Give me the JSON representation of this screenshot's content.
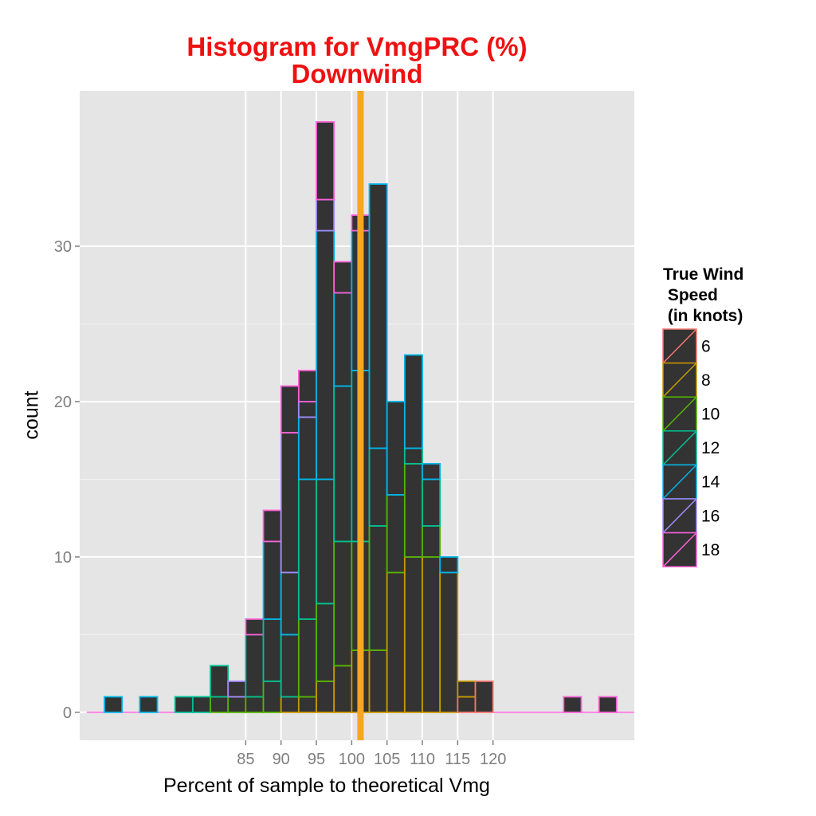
{
  "chart_data": {
    "type": "bar",
    "stacked": true,
    "title_line1": "Histogram for VmgPRC (%)",
    "title_line2": "Downwind",
    "xlabel": "Percent of sample to theoretical Vmg",
    "ylabel": "count",
    "xlim": [
      61.5,
      140.0
    ],
    "ylim": [
      -1.8,
      40.0
    ],
    "bin_width": 2.5,
    "x_ticks": [
      85,
      90,
      95,
      100,
      105,
      110,
      115,
      120
    ],
    "x_tick_labels": [
      "85",
      "90",
      "95",
      "100",
      "105",
      "110",
      "115",
      "120"
    ],
    "y_ticks": [
      0,
      10,
      20,
      30
    ],
    "y_tick_labels": [
      "0",
      "10",
      "20",
      "30"
    ],
    "reference_line": {
      "x": 101.25,
      "color": "#f5a623"
    },
    "grid": true,
    "legend": {
      "title_lines": [
        "True Wind",
        " Speed",
        " (in knots)"
      ],
      "position": "right",
      "entries": [
        {
          "label": "6",
          "color": "#f8766d"
        },
        {
          "label": "8",
          "color": "#c49a00"
        },
        {
          "label": "10",
          "color": "#53b400"
        },
        {
          "label": "12",
          "color": "#00c094"
        },
        {
          "label": "14",
          "color": "#00b6eb"
        },
        {
          "label": "16",
          "color": "#a58aff"
        },
        {
          "label": "18",
          "color": "#fb61d7"
        }
      ]
    },
    "series_names": [
      "6",
      "8",
      "10",
      "12",
      "14",
      "16",
      "18"
    ],
    "bins": [
      {
        "x": 66.25,
        "counts": [
          0,
          0,
          0,
          0,
          1,
          0,
          0
        ]
      },
      {
        "x": 68.75,
        "counts": [
          0,
          0,
          0,
          0,
          0,
          0,
          0
        ]
      },
      {
        "x": 71.25,
        "counts": [
          0,
          0,
          0,
          0,
          1,
          0,
          0
        ]
      },
      {
        "x": 73.75,
        "counts": [
          0,
          0,
          0,
          0,
          0,
          0,
          0
        ]
      },
      {
        "x": 76.25,
        "counts": [
          0,
          0,
          0,
          1,
          0,
          0,
          0
        ]
      },
      {
        "x": 78.75,
        "counts": [
          0,
          0,
          0,
          1,
          0,
          0,
          0
        ]
      },
      {
        "x": 81.25,
        "counts": [
          0,
          0,
          1,
          2,
          0,
          0,
          0
        ]
      },
      {
        "x": 83.75,
        "counts": [
          0,
          0,
          1,
          0,
          0,
          1,
          0
        ]
      },
      {
        "x": 86.25,
        "counts": [
          0,
          0,
          1,
          4,
          0,
          0,
          1
        ]
      },
      {
        "x": 88.75,
        "counts": [
          0,
          0,
          2,
          4,
          5,
          0,
          2
        ]
      },
      {
        "x": 91.25,
        "counts": [
          0,
          1,
          0,
          4,
          4,
          9,
          3
        ]
      },
      {
        "x": 93.75,
        "counts": [
          0,
          1,
          5,
          9,
          4,
          1,
          2
        ]
      },
      {
        "x": 96.25,
        "counts": [
          0,
          2,
          5,
          8,
          16,
          2,
          5
        ]
      },
      {
        "x": 98.75,
        "counts": [
          0,
          3,
          8,
          10,
          6,
          0,
          2
        ]
      },
      {
        "x": 101.25,
        "counts": [
          0,
          4,
          7,
          11,
          9,
          0,
          1
        ]
      },
      {
        "x": 103.75,
        "counts": [
          0,
          4,
          8,
          5,
          17,
          0,
          0
        ]
      },
      {
        "x": 106.25,
        "counts": [
          0,
          9,
          5,
          0,
          6,
          0,
          0
        ]
      },
      {
        "x": 108.75,
        "counts": [
          0,
          10,
          6,
          1,
          6,
          0,
          0
        ]
      },
      {
        "x": 111.25,
        "counts": [
          0,
          10,
          2,
          3,
          1,
          0,
          0
        ]
      },
      {
        "x": 113.75,
        "counts": [
          0,
          9,
          0,
          0,
          1,
          0,
          0
        ]
      },
      {
        "x": 116.25,
        "counts": [
          1,
          1,
          0,
          0,
          0,
          0,
          0
        ]
      },
      {
        "x": 118.75,
        "counts": [
          2,
          0,
          0,
          0,
          0,
          0,
          0
        ]
      },
      {
        "x": 121.25,
        "counts": [
          0,
          0,
          0,
          0,
          0,
          0,
          0
        ]
      },
      {
        "x": 123.75,
        "counts": [
          0,
          0,
          0,
          0,
          0,
          0,
          0
        ]
      },
      {
        "x": 126.25,
        "counts": [
          0,
          0,
          0,
          0,
          0,
          0,
          0
        ]
      },
      {
        "x": 128.75,
        "counts": [
          0,
          0,
          0,
          0,
          0,
          0,
          0
        ]
      },
      {
        "x": 131.25,
        "counts": [
          0,
          0,
          0,
          0,
          0,
          0,
          1
        ]
      },
      {
        "x": 133.75,
        "counts": [
          0,
          0,
          0,
          0,
          0,
          0,
          0
        ]
      },
      {
        "x": 136.25,
        "counts": [
          0,
          0,
          0,
          0,
          0,
          0,
          1
        ]
      }
    ]
  }
}
